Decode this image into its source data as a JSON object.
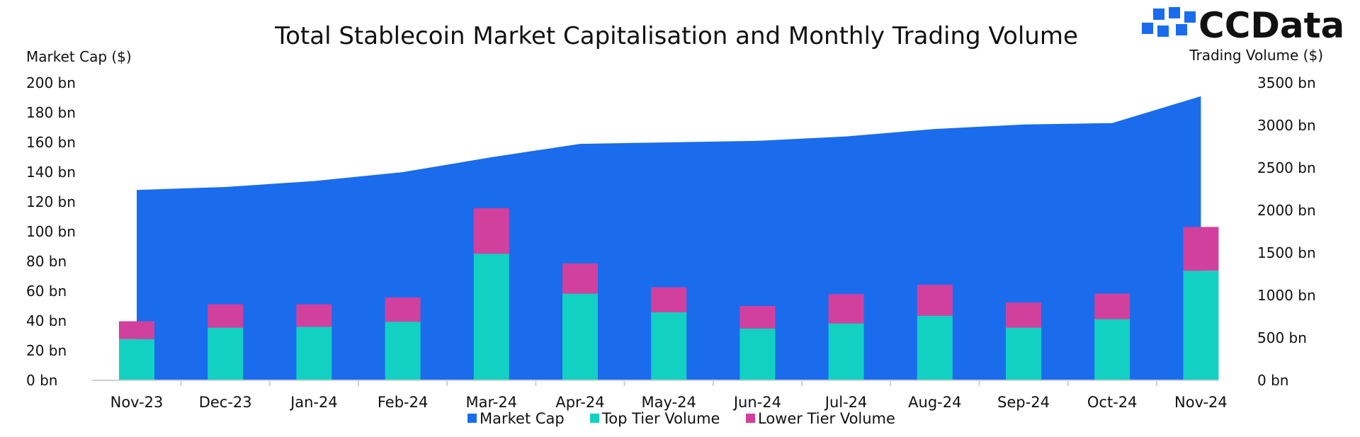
{
  "logo": {
    "text": "CCData"
  },
  "chart_data": {
    "type": "bar",
    "title": "Total Stablecoin Market Capitalisation and Monthly Trading Volume",
    "y_left_label": "Market Cap ($)",
    "y_right_label": "Trading Volume ($)",
    "categories": [
      "Nov-23",
      "Dec-23",
      "Jan-24",
      "Feb-24",
      "Mar-24",
      "Apr-24",
      "May-24",
      "Jun-24",
      "Jul-24",
      "Aug-24",
      "Sep-24",
      "Oct-24",
      "Nov-24"
    ],
    "y_left_range": [
      0,
      200
    ],
    "y_right_range": [
      0,
      3500
    ],
    "y_left_ticks": [
      "0 bn",
      "20 bn",
      "40 bn",
      "60 bn",
      "80 bn",
      "100 bn",
      "120 bn",
      "140 bn",
      "160 bn",
      "180 bn",
      "200 bn"
    ],
    "y_right_ticks": [
      "0 bn",
      "500 bn",
      "1000 bn",
      "1500 bn",
      "2000 bn",
      "2500 bn",
      "3000 bn",
      "3500 bn"
    ],
    "series": [
      {
        "name": "Market Cap",
        "type": "area",
        "axis": "left",
        "color": "#1a6ced",
        "values": [
          128,
          130,
          134,
          140,
          150,
          159,
          160,
          161,
          164,
          169,
          172,
          173,
          191
        ]
      },
      {
        "name": "Top Tier Volume",
        "type": "stacked-bar",
        "axis": "right",
        "color": "#12d1c2",
        "values": [
          485,
          620,
          630,
          690,
          1490,
          1020,
          800,
          610,
          670,
          760,
          620,
          720,
          1290
        ]
      },
      {
        "name": "Lower Tier Volume",
        "type": "stacked-bar",
        "axis": "right",
        "color": "#d2409e",
        "values": [
          210,
          275,
          265,
          285,
          535,
          355,
          295,
          265,
          345,
          365,
          295,
          300,
          515
        ]
      }
    ],
    "legend_position": "bottom",
    "grid": false
  }
}
